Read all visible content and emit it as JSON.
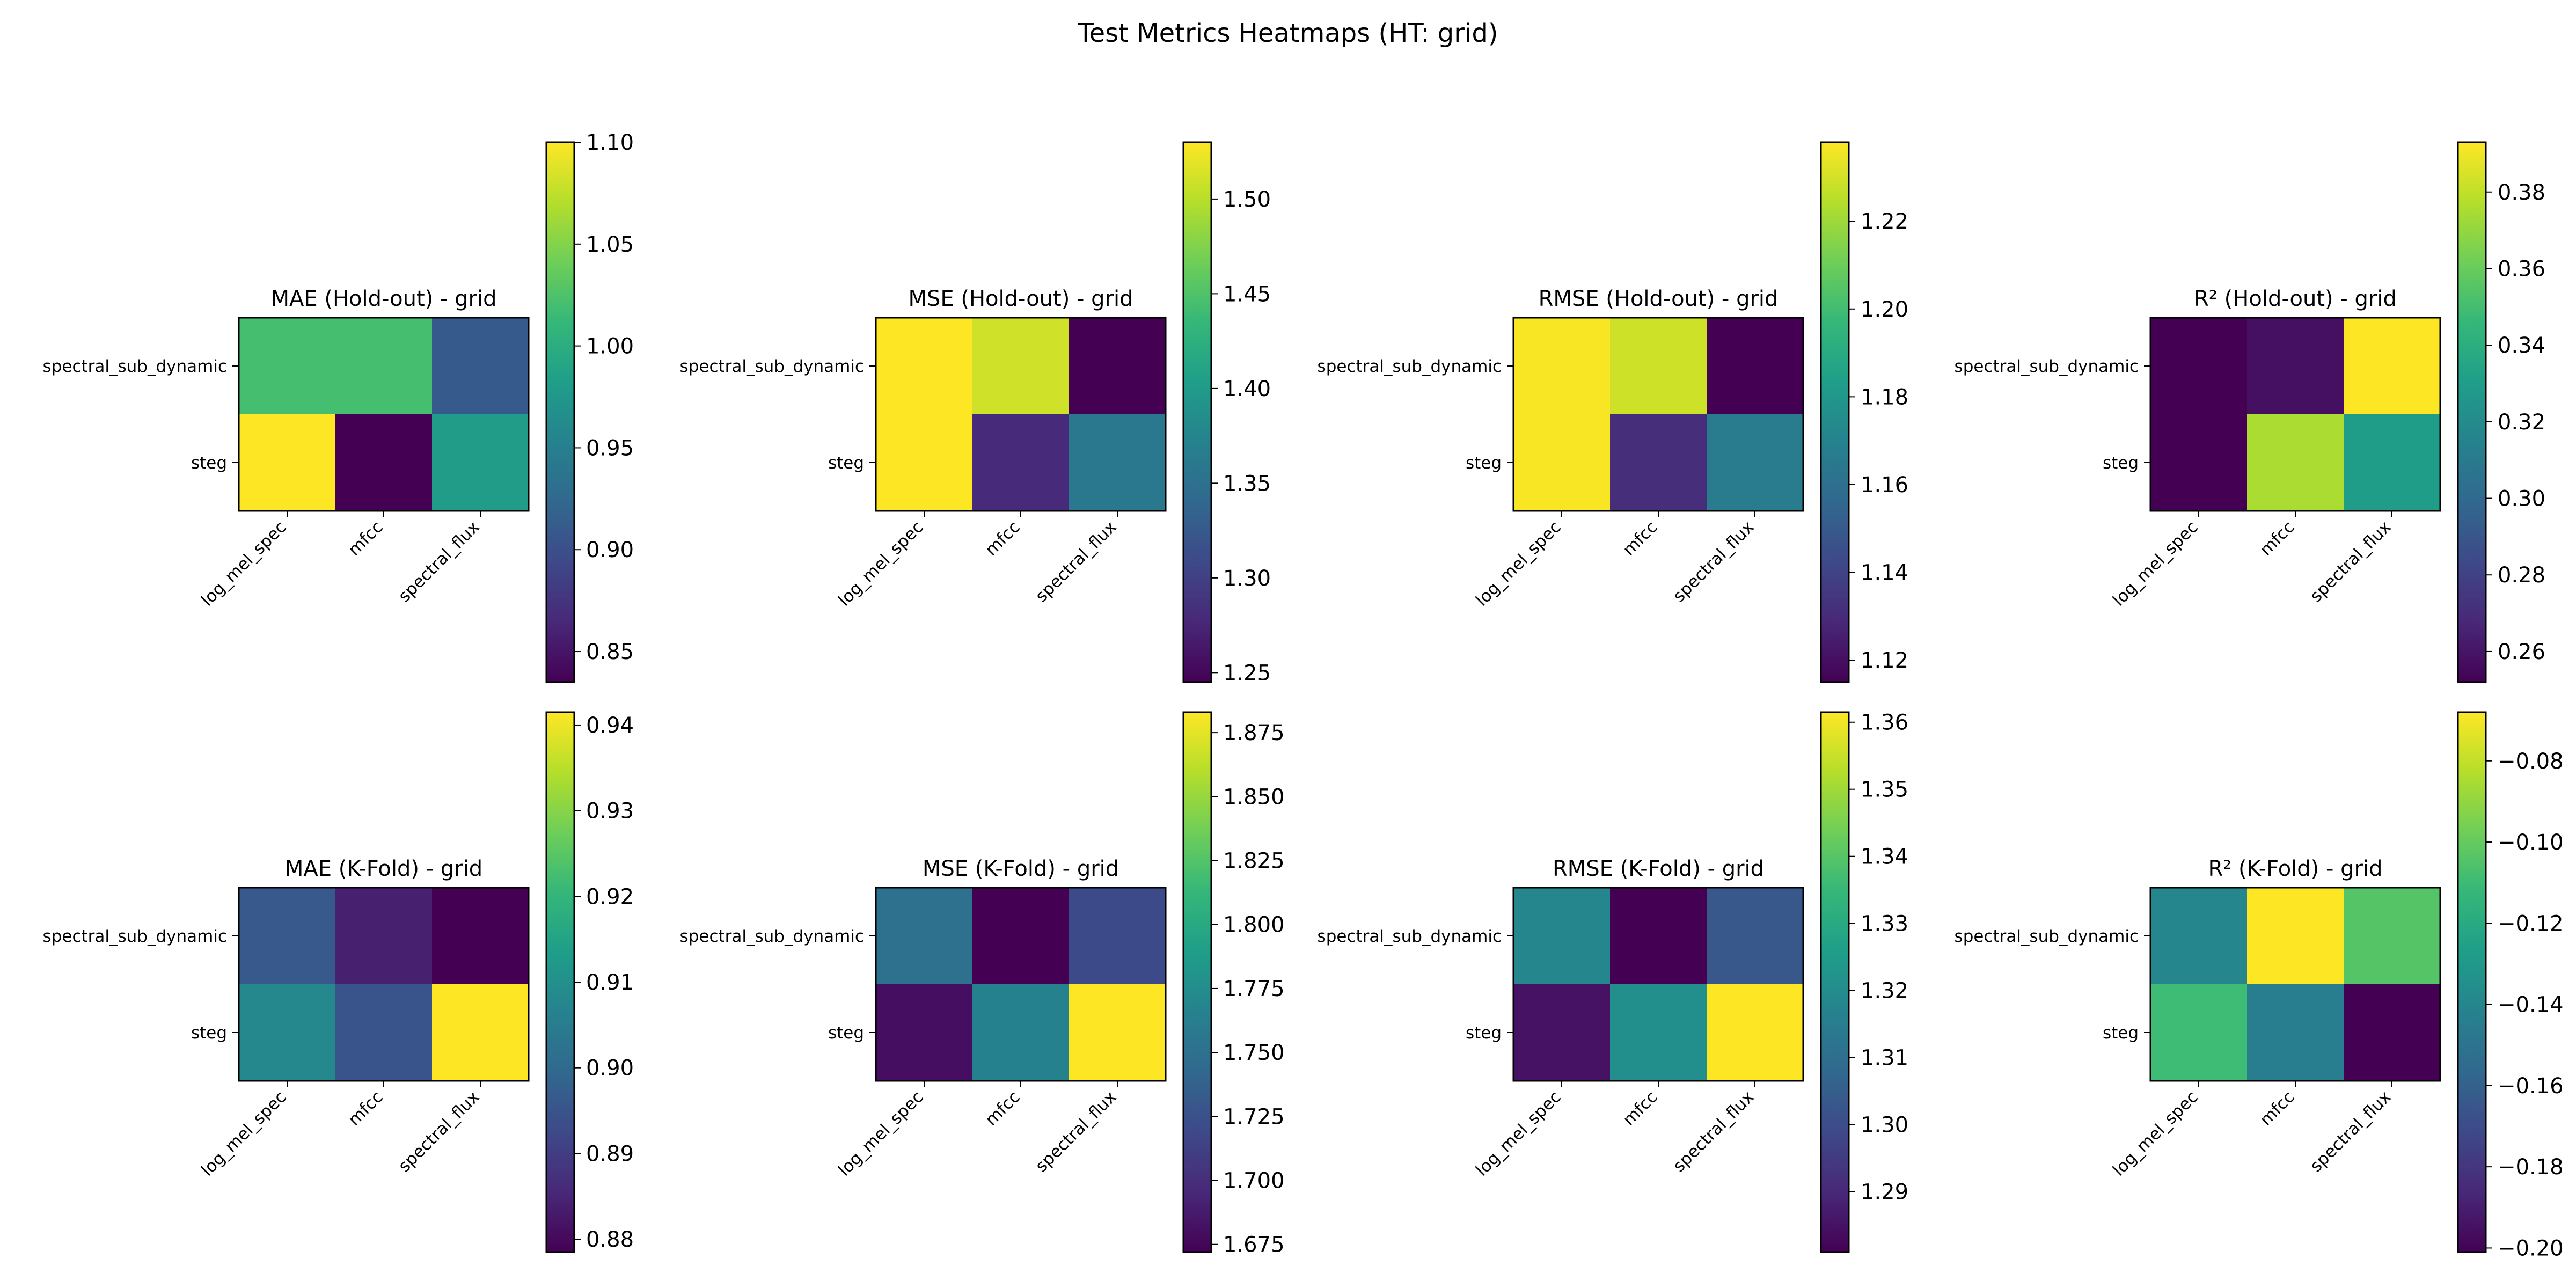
{
  "figure": {
    "suptitle": "Test Metrics Heatmaps (HT: grid)"
  },
  "colormap": {
    "name": "viridis",
    "stops": [
      "#440154",
      "#482878",
      "#3e4989",
      "#31688e",
      "#26828e",
      "#1f9e89",
      "#35b779",
      "#6ece58",
      "#b5de2b",
      "#fde725"
    ]
  },
  "chart_data": [
    {
      "type": "heatmap",
      "title": "MAE (Hold-out) - grid",
      "rows": [
        "spectral_sub_dynamic",
        "steg"
      ],
      "cols": [
        "log_mel_spec",
        "mfcc",
        "spectral_flux"
      ],
      "values": [
        [
          1.02,
          1.02,
          0.91
        ],
        [
          1.1,
          0.835,
          0.98
        ]
      ],
      "vmin": 0.835,
      "vmax": 1.1,
      "colorbar_ticks": [
        "0.85",
        "0.90",
        "0.95",
        "1.00",
        "1.05",
        "1.10"
      ]
    },
    {
      "type": "heatmap",
      "title": "MSE (Hold-out) - grid",
      "rows": [
        "spectral_sub_dynamic",
        "steg"
      ],
      "cols": [
        "log_mel_spec",
        "mfcc",
        "spectral_flux"
      ],
      "values": [
        [
          1.53,
          1.51,
          1.245
        ],
        [
          1.53,
          1.28,
          1.36
        ]
      ],
      "vmin": 1.245,
      "vmax": 1.53,
      "colorbar_ticks": [
        "1.25",
        "1.30",
        "1.35",
        "1.40",
        "1.45",
        "1.50"
      ]
    },
    {
      "type": "heatmap",
      "title": "RMSE (Hold-out) - grid",
      "rows": [
        "spectral_sub_dynamic",
        "steg"
      ],
      "cols": [
        "log_mel_spec",
        "mfcc",
        "spectral_flux"
      ],
      "values": [
        [
          1.237,
          1.229,
          1.115
        ],
        [
          1.237,
          1.131,
          1.166
        ]
      ],
      "vmin": 1.115,
      "vmax": 1.238,
      "colorbar_ticks": [
        "1.12",
        "1.14",
        "1.16",
        "1.18",
        "1.20",
        "1.22"
      ]
    },
    {
      "type": "heatmap",
      "title": "R² (Hold-out) - grid",
      "rows": [
        "spectral_sub_dynamic",
        "steg"
      ],
      "cols": [
        "log_mel_spec",
        "mfcc",
        "spectral_flux"
      ],
      "values": [
        [
          0.252,
          0.258,
          0.393
        ],
        [
          0.252,
          0.375,
          0.33
        ]
      ],
      "vmin": 0.252,
      "vmax": 0.393,
      "colorbar_ticks": [
        "0.26",
        "0.28",
        "0.30",
        "0.32",
        "0.34",
        "0.36",
        "0.38"
      ]
    },
    {
      "type": "heatmap",
      "title": "MAE (K-Fold) - grid",
      "rows": [
        "spectral_sub_dynamic",
        "steg"
      ],
      "cols": [
        "log_mel_spec",
        "mfcc",
        "spectral_flux"
      ],
      "values": [
        [
          0.896,
          0.884,
          0.8785
        ],
        [
          0.908,
          0.895,
          0.9415
        ]
      ],
      "vmin": 0.8785,
      "vmax": 0.9415,
      "colorbar_ticks": [
        "0.88",
        "0.89",
        "0.90",
        "0.91",
        "0.92",
        "0.93",
        "0.94"
      ]
    },
    {
      "type": "heatmap",
      "title": "MSE (K-Fold) - grid",
      "rows": [
        "spectral_sub_dynamic",
        "steg"
      ],
      "cols": [
        "log_mel_spec",
        "mfcc",
        "spectral_flux"
      ],
      "values": [
        [
          1.75,
          1.672,
          1.72
        ],
        [
          1.68,
          1.765,
          1.883
        ]
      ],
      "vmin": 1.672,
      "vmax": 1.883,
      "colorbar_ticks": [
        "1.675",
        "1.700",
        "1.725",
        "1.750",
        "1.775",
        "1.800",
        "1.825",
        "1.850",
        "1.875"
      ]
    },
    {
      "type": "heatmap",
      "title": "RMSE (K-Fold) - grid",
      "rows": [
        "spectral_sub_dynamic",
        "steg"
      ],
      "cols": [
        "log_mel_spec",
        "mfcc",
        "spectral_flux"
      ],
      "values": [
        [
          1.318,
          1.281,
          1.303
        ],
        [
          1.285,
          1.321,
          1.3615
        ]
      ],
      "vmin": 1.281,
      "vmax": 1.3615,
      "colorbar_ticks": [
        "1.29",
        "1.30",
        "1.31",
        "1.32",
        "1.33",
        "1.34",
        "1.35",
        "1.36"
      ]
    },
    {
      "type": "heatmap",
      "title": "R² (K-Fold) - grid",
      "rows": [
        "spectral_sub_dynamic",
        "steg"
      ],
      "cols": [
        "log_mel_spec",
        "mfcc",
        "spectral_flux"
      ],
      "values": [
        [
          -0.14,
          -0.068,
          -0.104
        ],
        [
          -0.11,
          -0.145,
          -0.201
        ]
      ],
      "vmin": -0.201,
      "vmax": -0.068,
      "colorbar_ticks": [
        "-0.20",
        "-0.18",
        "-0.16",
        "-0.14",
        "-0.12",
        "-0.10",
        "-0.08"
      ]
    }
  ]
}
